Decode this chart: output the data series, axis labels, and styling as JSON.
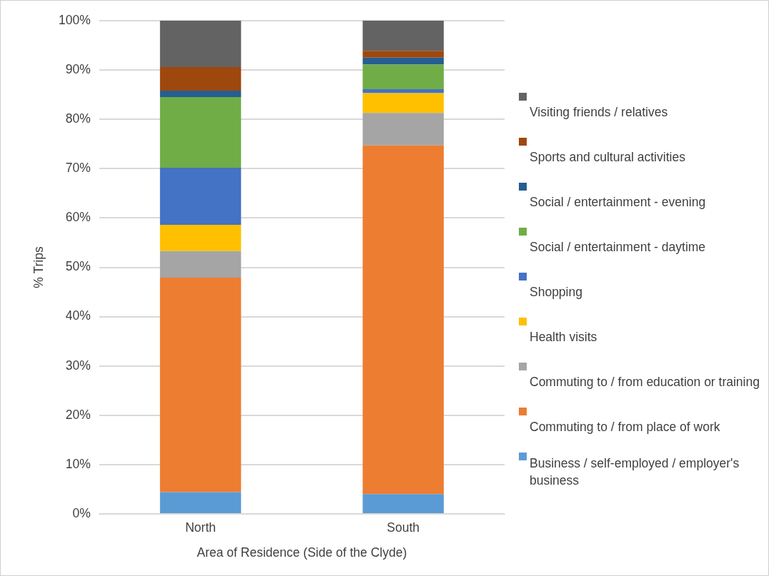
{
  "chart_data": {
    "type": "bar",
    "stacked": true,
    "xlabel": "Area of Residence (Side of the Clyde)",
    "ylabel": "% Trips",
    "categories": [
      "North",
      "South"
    ],
    "series": [
      {
        "name": "Business / self-employed / employer's business",
        "color": "#5b9bd5",
        "values": [
          4.4,
          4.0
        ]
      },
      {
        "name": "Commuting to / from place of work",
        "color": "#ed7d31",
        "values": [
          43.5,
          70.7
        ]
      },
      {
        "name": "Commuting to / from education or training",
        "color": "#a5a5a5",
        "values": [
          5.4,
          6.6
        ]
      },
      {
        "name": "Health visits",
        "color": "#ffc000",
        "values": [
          5.3,
          4.0
        ]
      },
      {
        "name": "Shopping",
        "color": "#4472c4",
        "values": [
          11.6,
          0.8
        ]
      },
      {
        "name": "Social / entertainment - daytime",
        "color": "#70ad47",
        "values": [
          14.3,
          5.0
        ]
      },
      {
        "name": "Social / entertainment - evening",
        "color": "#255e91",
        "values": [
          1.3,
          1.4
        ]
      },
      {
        "name": "Sports and cultural activities",
        "color": "#9e480e",
        "values": [
          4.8,
          1.4
        ]
      },
      {
        "name": "Visiting friends / relatives",
        "color": "#636363",
        "values": [
          9.4,
          6.1
        ]
      }
    ],
    "ylim": [
      0,
      100
    ],
    "yticks": [
      {
        "value": 0,
        "label": "0%"
      },
      {
        "value": 10,
        "label": "10%"
      },
      {
        "value": 20,
        "label": "20%"
      },
      {
        "value": 30,
        "label": "30%"
      },
      {
        "value": 40,
        "label": "40%"
      },
      {
        "value": 50,
        "label": "50%"
      },
      {
        "value": 60,
        "label": "60%"
      },
      {
        "value": 70,
        "label": "70%"
      },
      {
        "value": 80,
        "label": "80%"
      },
      {
        "value": 90,
        "label": "90%"
      },
      {
        "value": 100,
        "label": "100%"
      }
    ],
    "grid": "y",
    "legend": "right"
  }
}
